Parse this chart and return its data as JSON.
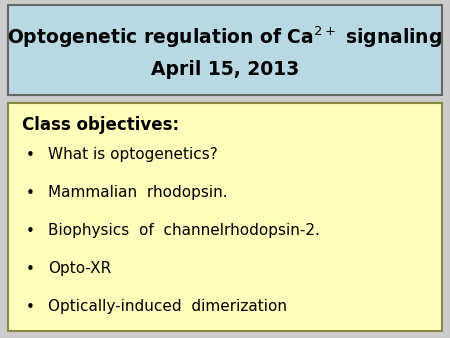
{
  "title_line1": "Optogenetic regulation of Ca",
  "title_superscript": "2+",
  "title_line1_suffix": " signaling",
  "title_line2": "April 15, 2013",
  "title_bg_color": "#b8d8e4",
  "title_border_color": "#666666",
  "body_bg_color": "#ffffbb",
  "body_border_color": "#888844",
  "bg_color": "#cccccc",
  "objectives_header": "Class objectives:",
  "bullet_items": [
    "What is optogenetics?",
    "Mammalian  rhodopsin.",
    "Biophysics  of  channelrhodopsin-2.",
    "Opto-XR",
    "Optically-induced  dimerization"
  ],
  "bullet_char": "•",
  "text_color": "#000000",
  "title_fontsize": 13.5,
  "body_fontsize": 11,
  "header_fontsize": 12
}
